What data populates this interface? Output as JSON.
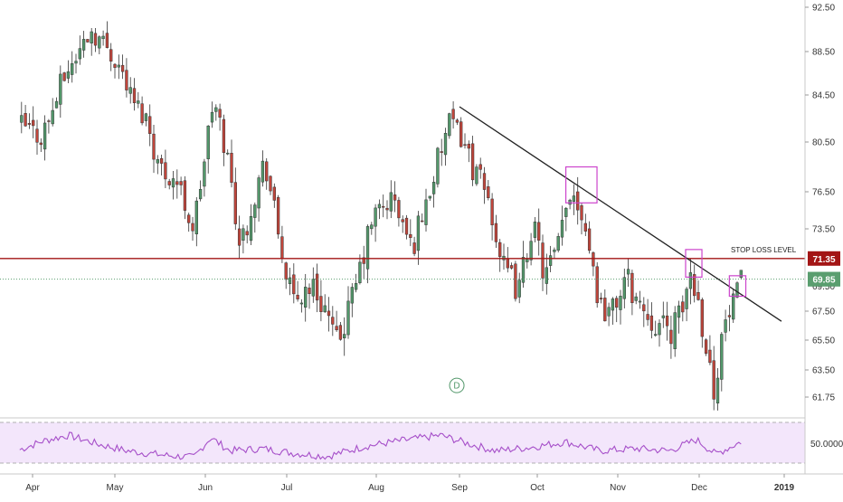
{
  "chart_data": {
    "type": "candlestick",
    "price_axis": {
      "ticks": [
        "92.50",
        "88.50",
        "84.50",
        "80.50",
        "76.50",
        "73.50",
        "67.50",
        "65.50",
        "63.50",
        "61.75"
      ],
      "tick_values": [
        92.5,
        88.5,
        84.5,
        80.5,
        76.5,
        73.5,
        67.5,
        65.5,
        63.5,
        61.75
      ],
      "partially_hidden_tick": "69.50",
      "range": [
        60.5,
        93.5
      ]
    },
    "time_axis": {
      "labels": [
        "Apr",
        "May",
        "Jun",
        "Jul",
        "Aug",
        "Sep",
        "Oct",
        "Nov",
        "Dec",
        "2019"
      ],
      "bold_label": "2019"
    },
    "stop_loss": {
      "label": "STOP LOSS LEVEL",
      "value": 71.35,
      "value_label": "71.35",
      "color": "#a31515"
    },
    "last_price": {
      "value": 69.85,
      "value_label": "69.85",
      "color": "#5a9e6f"
    },
    "trendline": {
      "start": {
        "x": "Sep 01",
        "y": 83.5
      },
      "end": {
        "x": "Dec 31",
        "y": 66.8
      },
      "color": "#222222"
    },
    "highlight_boxes": [
      {
        "x_from": "Oct 12",
        "x_to": "Oct 24",
        "y_from": 75.6,
        "y_to": 78.5
      },
      {
        "x_from": "Nov 26",
        "x_to": "Dec 02",
        "y_from": 70.0,
        "y_to": 72.0
      },
      {
        "x_from": "Dec 12",
        "x_to": "Dec 18",
        "y_from": 68.6,
        "y_to": 70.1
      }
    ],
    "colors": {
      "up": "#53986b",
      "down": "#c0453b",
      "box": "#cc44cc",
      "rsi": "#a64fc9",
      "rsi_band": "#f3e6fb"
    },
    "price_path": [
      [
        "Mar 27",
        82.0
      ],
      [
        "Apr 04",
        81.0
      ],
      [
        "Apr 08",
        83.0
      ],
      [
        "Apr 12",
        86.0
      ],
      [
        "Apr 18",
        88.5
      ],
      [
        "Apr 22",
        90.5
      ],
      [
        "Apr 28",
        89.0
      ],
      [
        "May 03",
        87.0
      ],
      [
        "May 07",
        84.0
      ],
      [
        "May 12",
        82.5
      ],
      [
        "May 16",
        78.5
      ],
      [
        "May 22",
        77.5
      ],
      [
        "May 28",
        73.5
      ],
      [
        "Jun 04",
        84.0
      ],
      [
        "Jun 09",
        79.5
      ],
      [
        "Jun 14",
        72.0
      ],
      [
        "Jun 18",
        75.5
      ],
      [
        "Jun 23",
        79.0
      ],
      [
        "Jun 28",
        73.0
      ],
      [
        "Jul 03",
        68.0
      ],
      [
        "Jul 09",
        69.5
      ],
      [
        "Jul 14",
        68.0
      ],
      [
        "Jul 18",
        65.0
      ],
      [
        "Jul 24",
        68.5
      ],
      [
        "Jul 31",
        74.5
      ],
      [
        "Aug 07",
        76.0
      ],
      [
        "Aug 14",
        72.0
      ],
      [
        "Aug 20",
        76.0
      ],
      [
        "Aug 28",
        82.0
      ],
      [
        "Sep 02",
        81.0
      ],
      [
        "Sep 06",
        78.5
      ],
      [
        "Sep 12",
        76.0
      ],
      [
        "Sep 18",
        70.5
      ],
      [
        "Sep 24",
        69.0
      ],
      [
        "Sep 29",
        74.0
      ],
      [
        "Oct 04",
        70.0
      ],
      [
        "Oct 09",
        72.0
      ],
      [
        "Oct 14",
        77.0
      ],
      [
        "Oct 19",
        74.5
      ],
      [
        "Oct 25",
        68.0
      ],
      [
        "Oct 30",
        67.5
      ],
      [
        "Nov 04",
        70.0
      ],
      [
        "Nov 09",
        68.0
      ],
      [
        "Nov 14",
        67.0
      ],
      [
        "Nov 19",
        66.0
      ],
      [
        "Nov 24",
        67.0
      ],
      [
        "Nov 28",
        70.5
      ],
      [
        "Dec 03",
        66.0
      ],
      [
        "Dec 06",
        62.0
      ],
      [
        "Dec 10",
        66.5
      ],
      [
        "Dec 14",
        68.0
      ],
      [
        "Dec 17",
        69.85
      ]
    ],
    "rsi": {
      "reference_label": "50.0000",
      "path": [
        [
          "Mar 27",
          47
        ],
        [
          "Apr 05",
          55
        ],
        [
          "Apr 14",
          60
        ],
        [
          "Apr 25",
          52
        ],
        [
          "May 05",
          46
        ],
        [
          "May 18",
          42
        ],
        [
          "May 28",
          40
        ],
        [
          "Jun 03",
          58
        ],
        [
          "Jun 10",
          46
        ],
        [
          "Jun 22",
          48
        ],
        [
          "Jul 03",
          44
        ],
        [
          "Jul 15",
          41
        ],
        [
          "Jul 28",
          50
        ],
        [
          "Aug 10",
          55
        ],
        [
          "Aug 25",
          60
        ],
        [
          "Sep 05",
          52
        ],
        [
          "Sep 15",
          46
        ],
        [
          "Sep 28",
          49
        ],
        [
          "Oct 12",
          54
        ],
        [
          "Oct 25",
          46
        ],
        [
          "Nov 08",
          48
        ],
        [
          "Nov 20",
          46
        ],
        [
          "Nov 30",
          56
        ],
        [
          "Dec 07",
          43
        ],
        [
          "Dec 17",
          55
        ]
      ]
    },
    "marker": {
      "label": "D",
      "x": "Aug 31",
      "y": 62.5
    }
  }
}
